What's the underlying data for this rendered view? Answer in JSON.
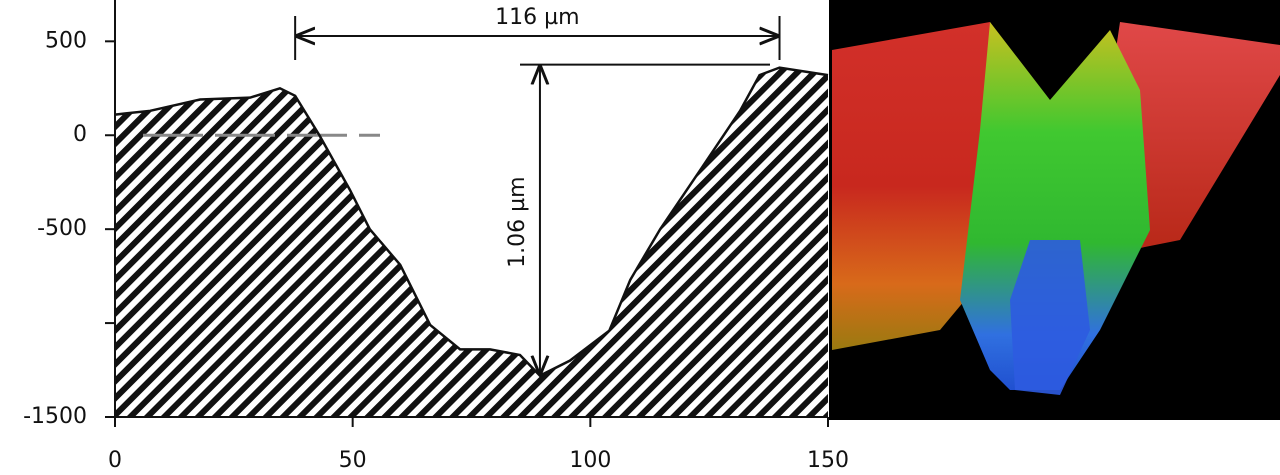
{
  "chart_data": {
    "type": "area",
    "x": [
      0,
      7.4,
      17.9,
      28.4,
      34.7,
      37.9,
      43,
      49.4,
      53.6,
      60,
      66.3,
      72.6,
      78.9,
      85.2,
      89.4,
      95.7,
      104,
      108.4,
      114.7,
      123,
      131.5,
      135.6,
      139.8,
      150
    ],
    "values": [
      110,
      130,
      190,
      200,
      250,
      210,
      0,
      -290,
      -500,
      -690,
      -1010,
      -1140,
      -1140,
      -1170,
      -1280,
      -1200,
      -1040,
      -770,
      -500,
      -190,
      130,
      320,
      360,
      320
    ],
    "color": "#111111",
    "xlim": [
      0,
      150
    ],
    "xticks": [
      0,
      50,
      100,
      150
    ],
    "ylim": [
      -1500,
      720
    ],
    "yticks": [
      500,
      0,
      -500,
      {
        "value": -1000,
        "label": null
      },
      -1500
    ],
    "annotations": [
      "116 µm",
      "1.06 µm"
    ]
  }
}
